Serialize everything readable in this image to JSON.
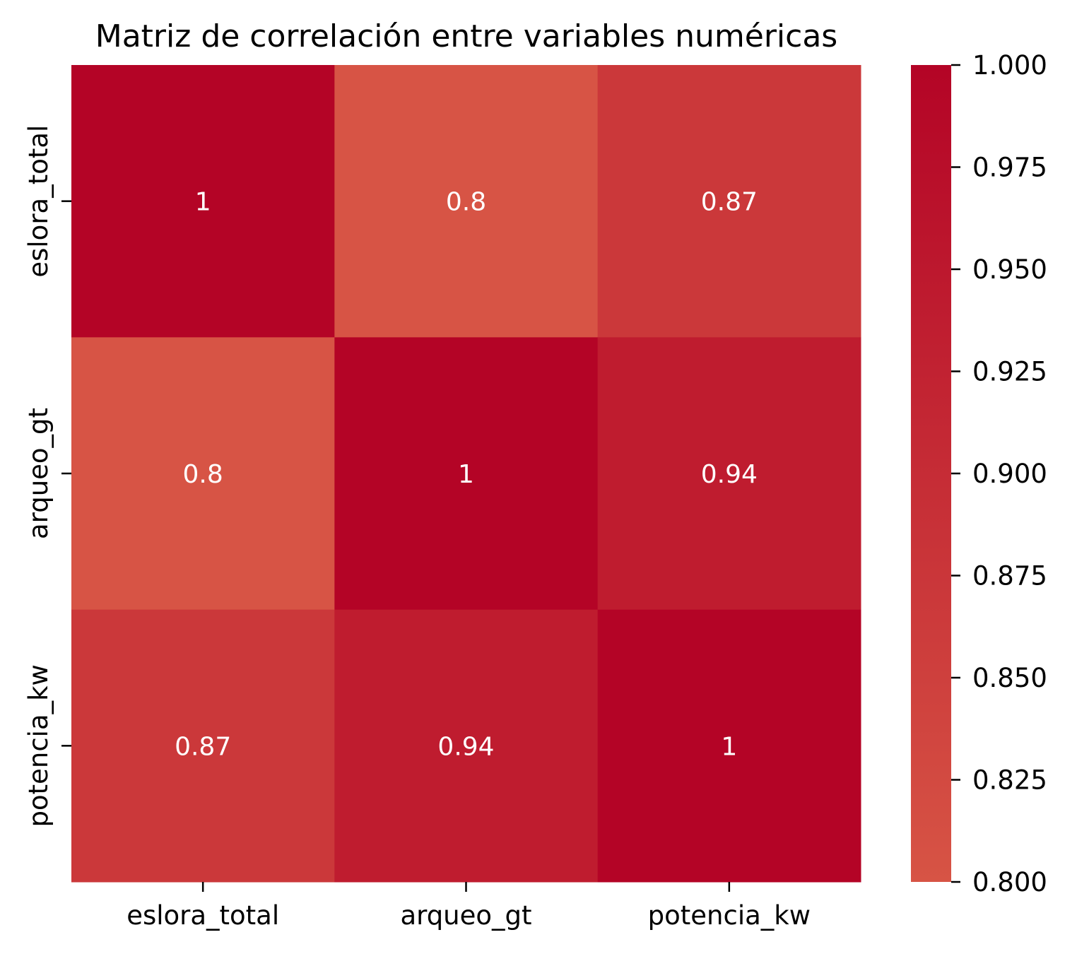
{
  "chart_data": {
    "type": "heatmap",
    "title": "Matriz de correlación entre variables numéricas",
    "x_categories": [
      "eslora_total",
      "arqueo_gt",
      "potencia_kw"
    ],
    "y_categories": [
      "eslora_total",
      "arqueo_gt",
      "potencia_kw"
    ],
    "values": [
      [
        1.0,
        0.8,
        0.87
      ],
      [
        0.8,
        1.0,
        0.94
      ],
      [
        0.87,
        0.94,
        1.0
      ]
    ],
    "annotations": [
      [
        "1",
        "0.8",
        "0.87"
      ],
      [
        "0.8",
        "1",
        "0.94"
      ],
      [
        "0.87",
        "0.94",
        "1"
      ]
    ],
    "colorbar": {
      "min": 0.8,
      "max": 1.0,
      "ticks": [
        "0.800",
        "0.825",
        "0.850",
        "0.875",
        "0.900",
        "0.925",
        "0.950",
        "0.975",
        "1.000"
      ],
      "color_low": "#d75445",
      "color_high": "#b40426"
    },
    "xlabel": "",
    "ylabel": ""
  }
}
